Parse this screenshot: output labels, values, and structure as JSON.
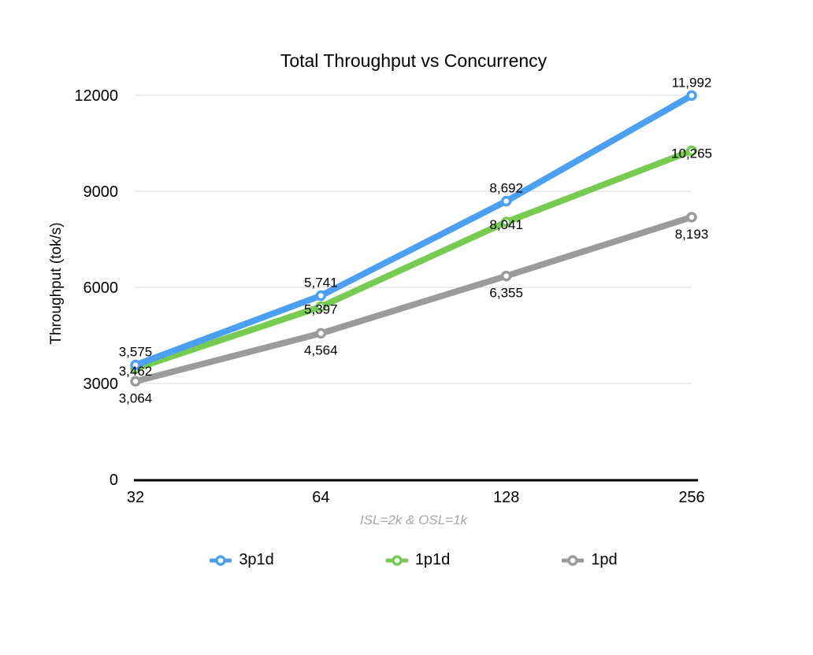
{
  "chart_data": {
    "type": "line",
    "title": "Total Throughput vs Concurrency",
    "ylabel": "Throughput (tok/s)",
    "xlabel": "",
    "caption": "ISL=2k & OSL=1k",
    "categories": [
      "32",
      "64",
      "128",
      "256"
    ],
    "series": [
      {
        "name": "3p1d",
        "values": [
          3575,
          5741,
          8692,
          11992
        ],
        "color": "#4BA0F4",
        "label_position": "above"
      },
      {
        "name": "1p1d",
        "values": [
          3462,
          5397,
          8041,
          10265
        ],
        "color": "#78CB51",
        "label_position": "center"
      },
      {
        "name": "1pd",
        "values": [
          3064,
          4564,
          6355,
          8193
        ],
        "color": "#9B9B9B",
        "label_position": "below"
      }
    ],
    "y_ticks": [
      0,
      3000,
      6000,
      9000,
      12000
    ],
    "ylim": [
      0,
      12000
    ],
    "grid": true,
    "legend_position": "bottom",
    "colors": {
      "gridline": "#D8D8D8",
      "axis": "#000000",
      "data_label_text": "#000000",
      "tick_label_text": "#000000",
      "caption_text": "#A8A8A8"
    }
  }
}
